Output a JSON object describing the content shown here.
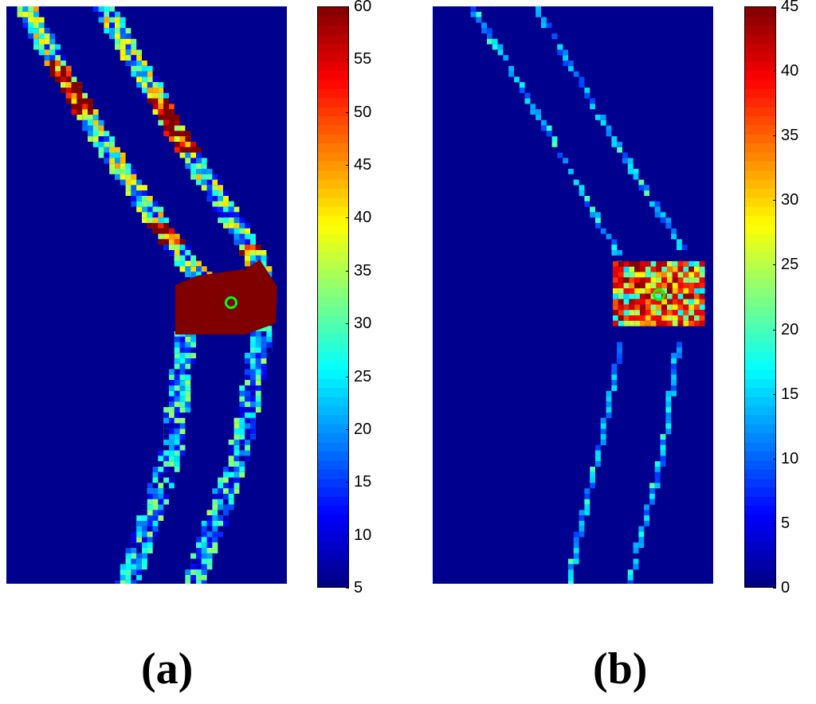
{
  "chart_data": [
    {
      "type": "heatmap",
      "panel": "(a)",
      "colormap": "jet",
      "colorbar": {
        "min": 5,
        "max": 60,
        "ticks": [
          "60",
          "55",
          "50",
          "45",
          "40",
          "35",
          "30",
          "25",
          "20",
          "15",
          "10",
          "5"
        ]
      },
      "background_value": 5,
      "features": [
        "two diagonal strips of mixed values (5-60)",
        "saturated block at junction (60)",
        "green circle marker at center of block"
      ]
    },
    {
      "type": "heatmap",
      "panel": "(b)",
      "colormap": "jet",
      "colorbar": {
        "min": 0,
        "max": 45,
        "ticks": [
          "45",
          "40",
          "35",
          "30",
          "25",
          "20",
          "15",
          "10",
          "5",
          "0"
        ]
      },
      "background_value": 0,
      "features": [
        "two sparse diagonal dotted strips (0-20)",
        "high-value block at junction (~35-45)",
        "green circle marker at center of block"
      ]
    }
  ],
  "labels": {
    "a": "(a)",
    "b": "(b)"
  },
  "colors": {
    "background": "#00008f",
    "marker": "#00ff00"
  }
}
